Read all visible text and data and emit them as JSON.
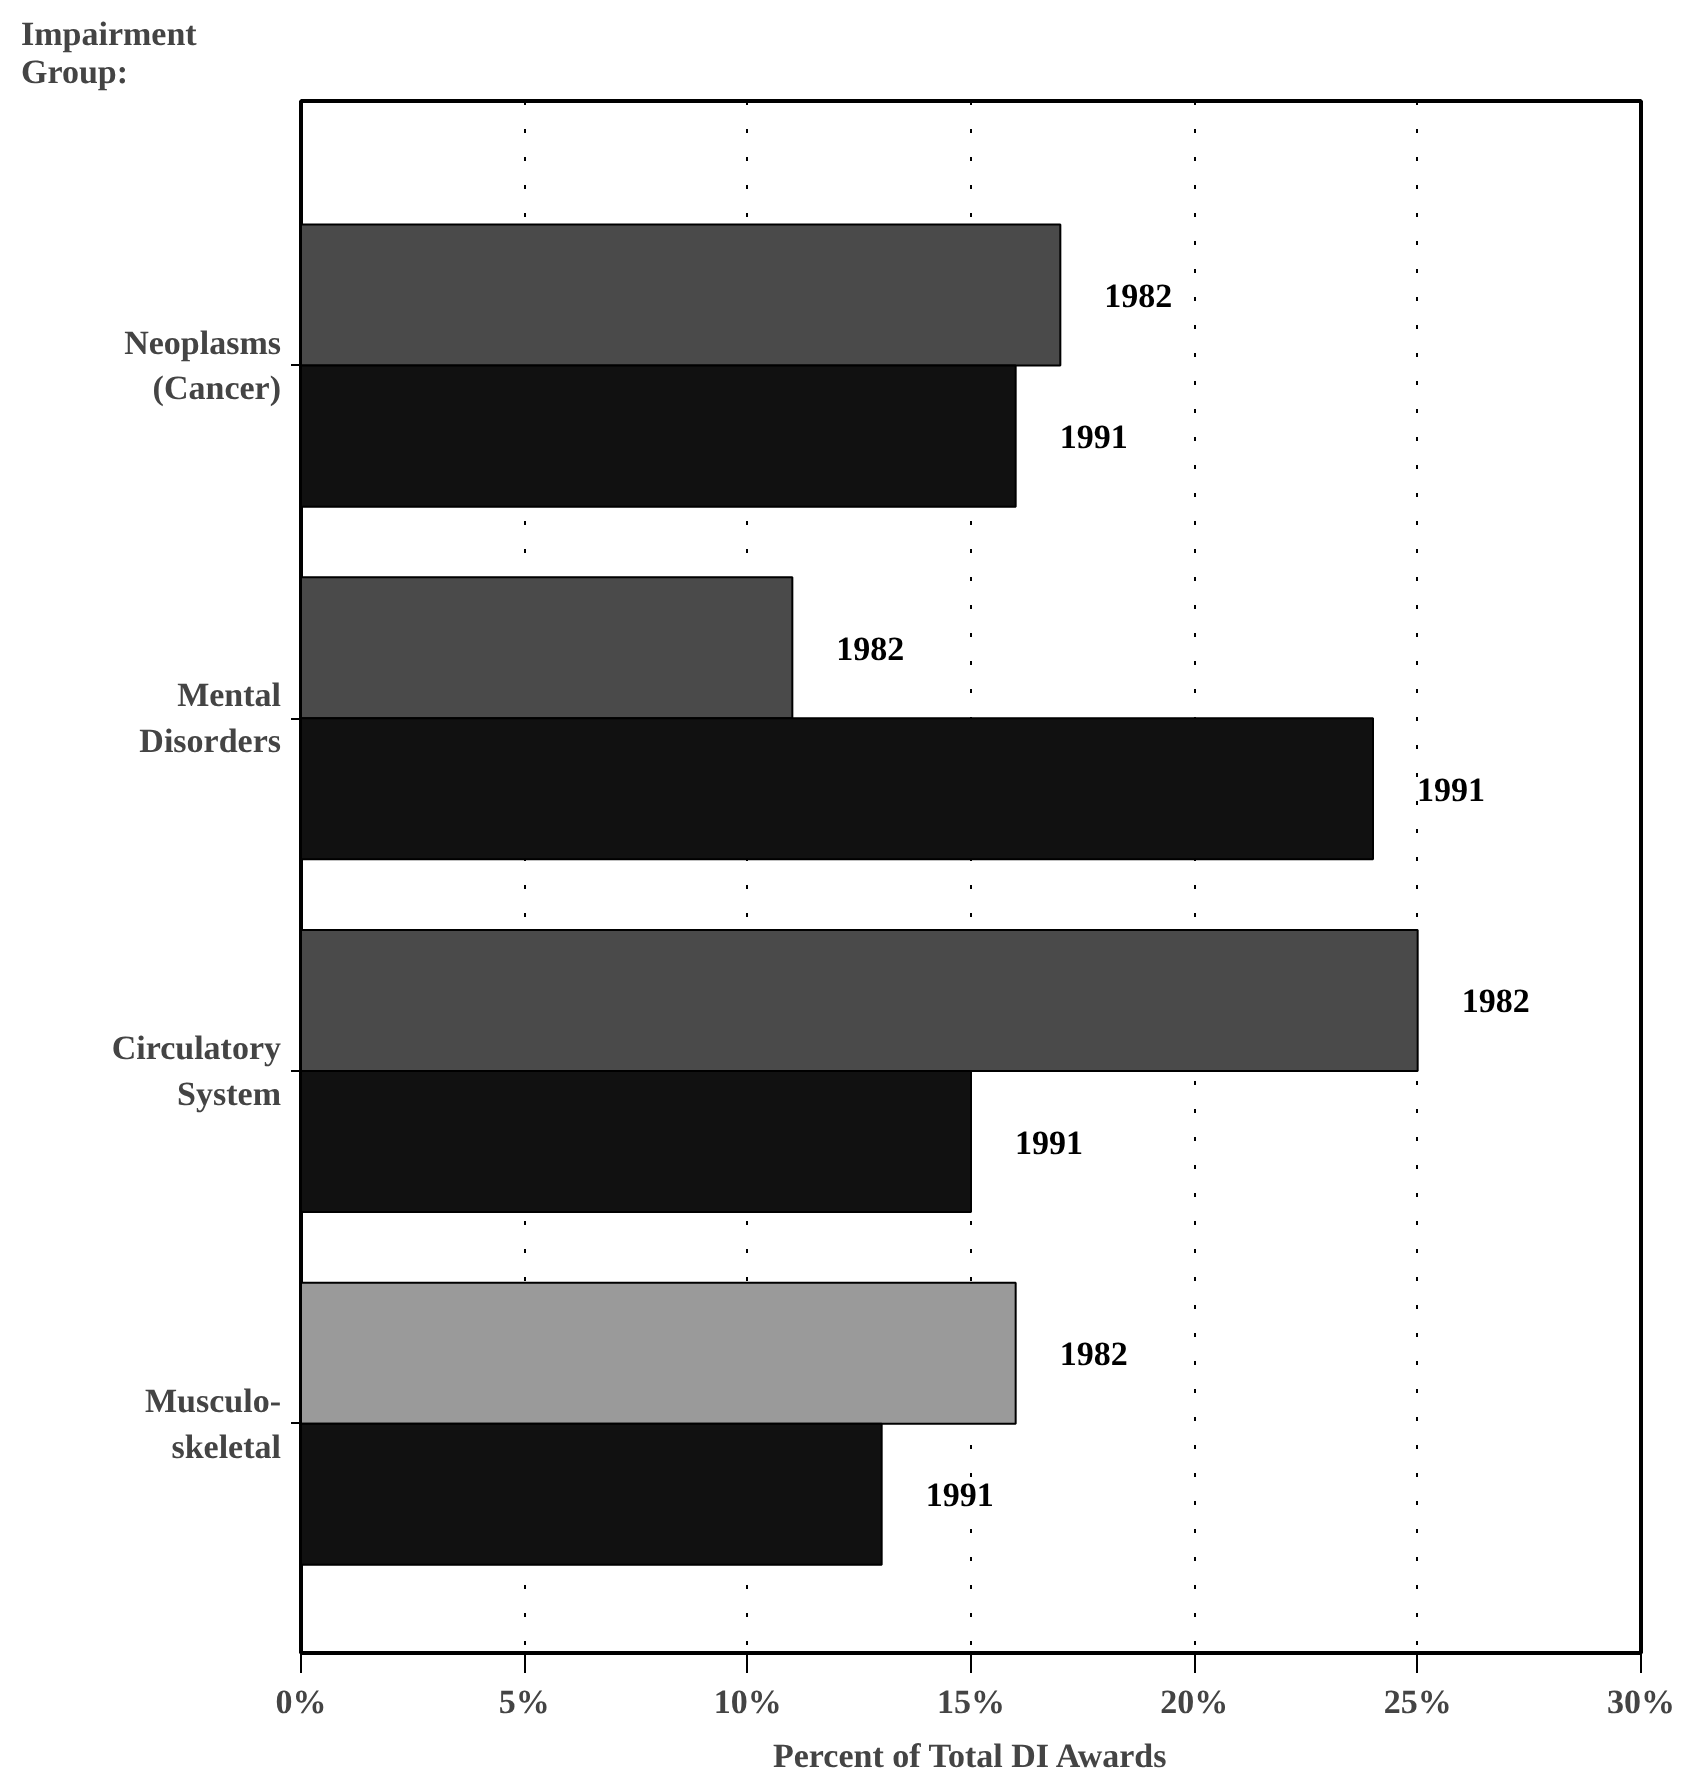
{
  "chart_data": {
    "type": "bar",
    "orientation": "horizontal",
    "ylabel": "Impairment\nGroup:",
    "xlabel": "Percent of Total DI Awards",
    "categories": [
      "Neoplasms\n(Cancer)",
      "Mental\nDisorders",
      "Circulatory\nSystem",
      "Musculo-\nskeletal"
    ],
    "series": [
      {
        "name": "1982",
        "colors": [
          "#4a4a4a",
          "#4a4a4a",
          "#4a4a4a",
          "#9a9a9a"
        ],
        "values": [
          17,
          11,
          25,
          16
        ]
      },
      {
        "name": "1991",
        "color": "#111111",
        "values": [
          16,
          24,
          15,
          13
        ]
      }
    ],
    "xlim": [
      0,
      30
    ],
    "xticks": [
      {
        "value": 0,
        "label": "0%"
      },
      {
        "value": 5,
        "label": "5%"
      },
      {
        "value": 10,
        "label": "10%"
      },
      {
        "value": 15,
        "label": "15%"
      },
      {
        "value": 20,
        "label": "20%"
      },
      {
        "value": 25,
        "label": "25%"
      },
      {
        "value": 30,
        "label": "30%"
      }
    ],
    "grid": "x"
  }
}
